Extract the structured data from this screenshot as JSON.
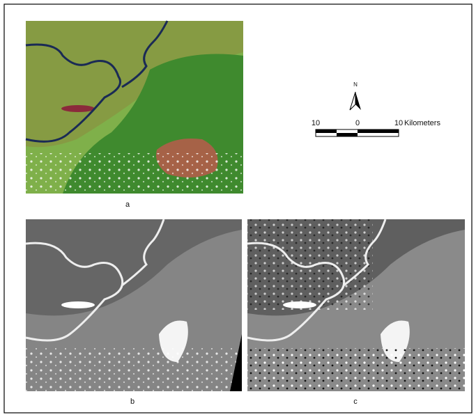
{
  "panels": [
    {
      "label": "a"
    },
    {
      "label": "b"
    },
    {
      "label": "c"
    }
  ],
  "north_arrow": {
    "label": "N"
  },
  "scale_bar": {
    "ticks": [
      10,
      0,
      10
    ],
    "unit": "Kilometers"
  }
}
